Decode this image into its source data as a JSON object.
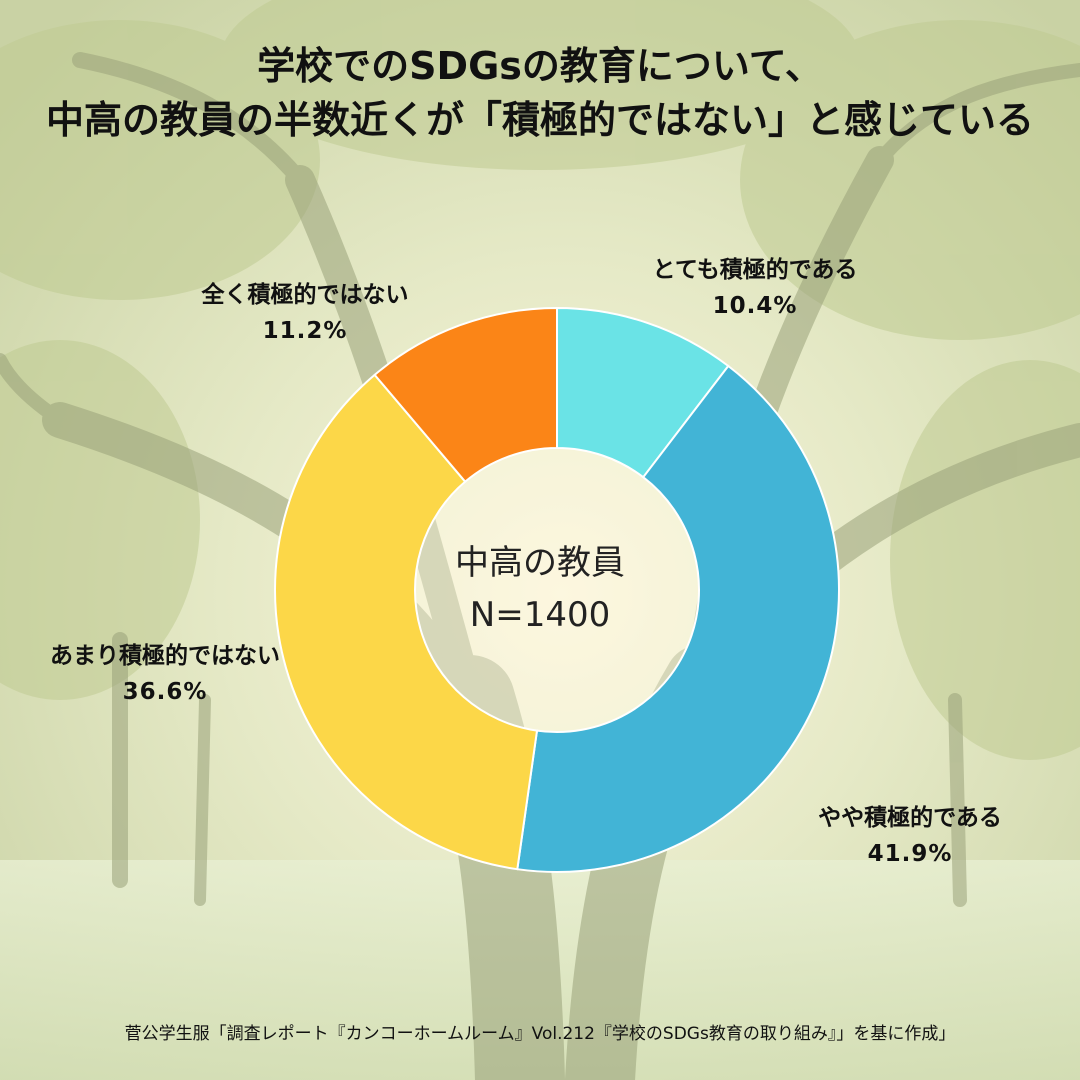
{
  "header": {
    "title_line1": "学校でのSDGsの教育について、",
    "title_line2": "中高の教員の半数近くが「積極的ではない」と感じている"
  },
  "center": {
    "line1": "中高の教員",
    "line2": "N=1400"
  },
  "footer": {
    "source": "菅公学生服「調査レポート『カンコーホームルーム』Vol.212『学校のSDGs教育の取り組み』」を基に作成」"
  },
  "colors": {
    "very_active": "#6ae3e6",
    "somewhat_active": "#42b4d6",
    "not_very_active": "#fcd748",
    "not_at_all_active": "#fb8517"
  },
  "chart_data": {
    "type": "pie",
    "donut": true,
    "start_angle": "12 o'clock",
    "direction": "clockwise",
    "slices": [
      {
        "label": "とても積極的である",
        "value": 10.4,
        "value_label": "10.4%",
        "color": "#6ae3e6"
      },
      {
        "label": "やや積極的である",
        "value": 41.9,
        "value_label": "41.9%",
        "color": "#42b4d6"
      },
      {
        "label": "あまり積極的ではない",
        "value": 36.6,
        "value_label": "36.6%",
        "color": "#fcd748"
      },
      {
        "label": "全く積極的ではない",
        "value": 11.2,
        "value_label": "11.2%",
        "color": "#fb8517"
      }
    ]
  }
}
